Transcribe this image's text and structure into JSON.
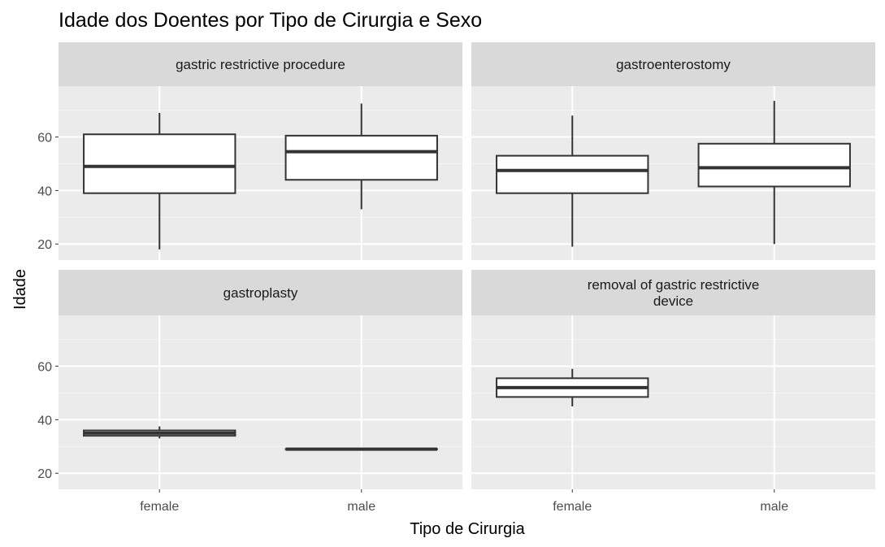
{
  "colors": {
    "panel_background": "#ebebeb",
    "strip_background": "#d9d9d9",
    "grid_major": "#ffffff",
    "grid_minor": "#f5f5f5",
    "box_fill": "#ffffff",
    "box_line": "#333333",
    "tick_text": "#4d4d4d"
  },
  "chart_data": {
    "type": "boxplot",
    "title": "Idade dos Doentes por Tipo de Cirurgia e Sexo",
    "xlabel": "Tipo de Cirurgia",
    "ylabel": "Idade",
    "categories": [
      "female",
      "male"
    ],
    "ylim": [
      14,
      79
    ],
    "y_ticks": [
      20,
      40,
      60
    ],
    "y_tick_labels": [
      "20",
      "40",
      "60"
    ],
    "grid": true,
    "facet_layout": {
      "rows": 2,
      "cols": 2
    },
    "panels": [
      {
        "strip": [
          "gastric restrictive procedure"
        ],
        "boxes": [
          {
            "category": "female",
            "min": 18,
            "q1": 39,
            "median": 49,
            "q3": 61,
            "max": 69
          },
          {
            "category": "male",
            "min": 33,
            "q1": 44,
            "median": 54.5,
            "q3": 60.5,
            "max": 72.5
          }
        ]
      },
      {
        "strip": [
          "gastroenterostomy"
        ],
        "boxes": [
          {
            "category": "female",
            "min": 19,
            "q1": 39,
            "median": 47.5,
            "q3": 53,
            "max": 68
          },
          {
            "category": "male",
            "min": 20,
            "q1": 41.5,
            "median": 48.5,
            "q3": 57.5,
            "max": 73.5
          }
        ]
      },
      {
        "strip": [
          "gastroplasty"
        ],
        "boxes": [
          {
            "category": "female",
            "min": 33,
            "q1": 34,
            "median": 35,
            "q3": 36,
            "max": 37.5
          },
          {
            "category": "male",
            "min": 29,
            "q1": 29,
            "median": 29,
            "q3": 29,
            "max": 29
          }
        ]
      },
      {
        "strip": [
          "removal of gastric restrictive",
          "device"
        ],
        "boxes": [
          {
            "category": "female",
            "min": 45,
            "q1": 48.5,
            "median": 52,
            "q3": 55.5,
            "max": 59
          }
        ]
      }
    ]
  }
}
